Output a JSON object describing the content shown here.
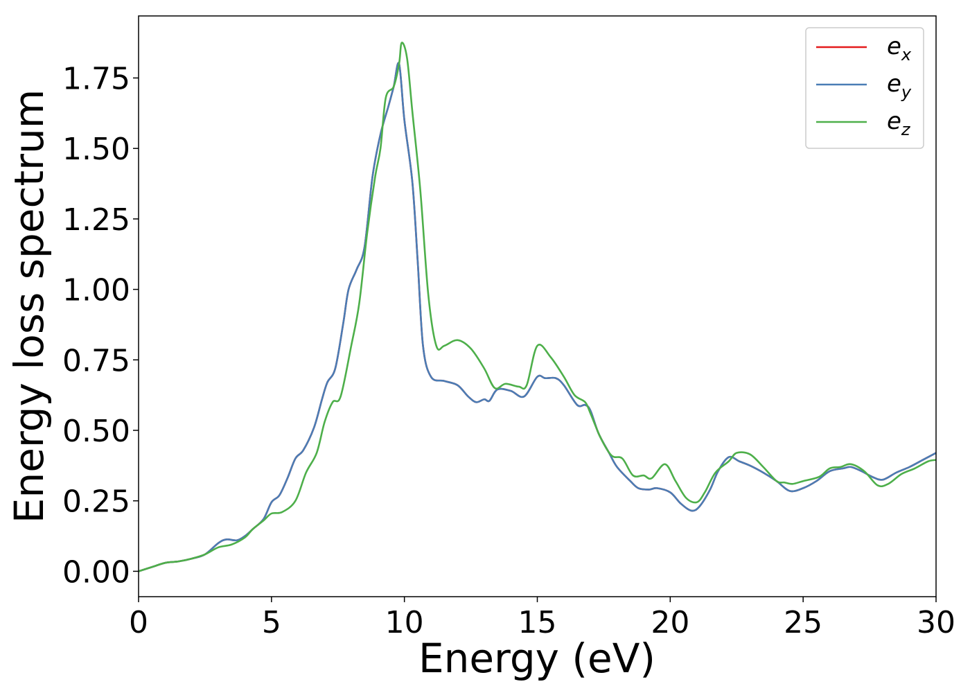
{
  "chart_data": {
    "type": "line",
    "xlabel": "Energy (eV)",
    "ylabel": "Energy loss spectrum",
    "xlim": [
      0,
      30
    ],
    "ylim": [
      -0.09,
      1.97
    ],
    "xticks": [
      0,
      5,
      10,
      15,
      20,
      25,
      30
    ],
    "xtick_labels": [
      "0",
      "5",
      "10",
      "15",
      "20",
      "25",
      "30"
    ],
    "yticks": [
      0,
      0.25,
      0.5,
      0.75,
      1.0,
      1.25,
      1.5,
      1.75
    ],
    "ytick_labels": [
      "0.00",
      "0.25",
      "0.50",
      "0.75",
      "1.00",
      "1.25",
      "1.50",
      "1.75"
    ],
    "grid": false,
    "legend_position": "top-right",
    "series": [
      {
        "name": "e_x",
        "legend_base": "e",
        "legend_sub": "x",
        "color": "#e41a1c",
        "points": [
          [
            0,
            0.0
          ],
          [
            0.5,
            0.015
          ],
          [
            1.0,
            0.03
          ],
          [
            1.5,
            0.035
          ],
          [
            2.0,
            0.045
          ],
          [
            2.5,
            0.06
          ],
          [
            3.0,
            0.1
          ],
          [
            3.3,
            0.113
          ],
          [
            3.7,
            0.11
          ],
          [
            4.0,
            0.125
          ],
          [
            4.3,
            0.15
          ],
          [
            4.7,
            0.185
          ],
          [
            5.0,
            0.245
          ],
          [
            5.3,
            0.27
          ],
          [
            5.6,
            0.33
          ],
          [
            5.9,
            0.4
          ],
          [
            6.2,
            0.43
          ],
          [
            6.6,
            0.51
          ],
          [
            6.9,
            0.61
          ],
          [
            7.1,
            0.67
          ],
          [
            7.4,
            0.72
          ],
          [
            7.7,
            0.88
          ],
          [
            7.9,
            1.0
          ],
          [
            8.2,
            1.07
          ],
          [
            8.5,
            1.15
          ],
          [
            8.8,
            1.4
          ],
          [
            9.1,
            1.55
          ],
          [
            9.4,
            1.65
          ],
          [
            9.6,
            1.72
          ],
          [
            9.8,
            1.8
          ],
          [
            10.0,
            1.6
          ],
          [
            10.3,
            1.38
          ],
          [
            10.5,
            1.1
          ],
          [
            10.7,
            0.8
          ],
          [
            11.0,
            0.69
          ],
          [
            11.5,
            0.675
          ],
          [
            12.0,
            0.66
          ],
          [
            12.4,
            0.62
          ],
          [
            12.7,
            0.6
          ],
          [
            13.0,
            0.61
          ],
          [
            13.2,
            0.605
          ],
          [
            13.5,
            0.645
          ],
          [
            14.0,
            0.64
          ],
          [
            14.5,
            0.62
          ],
          [
            15.0,
            0.69
          ],
          [
            15.3,
            0.685
          ],
          [
            15.7,
            0.685
          ],
          [
            16.0,
            0.66
          ],
          [
            16.5,
            0.59
          ],
          [
            16.8,
            0.59
          ],
          [
            17.0,
            0.57
          ],
          [
            17.3,
            0.49
          ],
          [
            17.7,
            0.42
          ],
          [
            18.0,
            0.37
          ],
          [
            18.5,
            0.32
          ],
          [
            18.8,
            0.295
          ],
          [
            19.2,
            0.29
          ],
          [
            19.5,
            0.295
          ],
          [
            20.0,
            0.28
          ],
          [
            20.4,
            0.24
          ],
          [
            20.8,
            0.215
          ],
          [
            21.1,
            0.23
          ],
          [
            21.5,
            0.29
          ],
          [
            21.8,
            0.355
          ],
          [
            22.2,
            0.405
          ],
          [
            22.6,
            0.39
          ],
          [
            23.0,
            0.375
          ],
          [
            23.5,
            0.35
          ],
          [
            24.0,
            0.32
          ],
          [
            24.5,
            0.285
          ],
          [
            25.0,
            0.295
          ],
          [
            25.5,
            0.32
          ],
          [
            26.0,
            0.355
          ],
          [
            26.5,
            0.365
          ],
          [
            26.8,
            0.37
          ],
          [
            27.2,
            0.355
          ],
          [
            27.6,
            0.335
          ],
          [
            28.0,
            0.325
          ],
          [
            28.5,
            0.35
          ],
          [
            29.0,
            0.37
          ],
          [
            29.5,
            0.395
          ],
          [
            30.0,
            0.42
          ]
        ]
      },
      {
        "name": "e_y",
        "legend_base": "e",
        "legend_sub": "y",
        "color": "#4a7db5",
        "points": [
          [
            0,
            0.0
          ],
          [
            0.5,
            0.015
          ],
          [
            1.0,
            0.03
          ],
          [
            1.5,
            0.035
          ],
          [
            2.0,
            0.045
          ],
          [
            2.5,
            0.06
          ],
          [
            3.0,
            0.1
          ],
          [
            3.3,
            0.113
          ],
          [
            3.7,
            0.11
          ],
          [
            4.0,
            0.125
          ],
          [
            4.3,
            0.15
          ],
          [
            4.7,
            0.185
          ],
          [
            5.0,
            0.245
          ],
          [
            5.3,
            0.27
          ],
          [
            5.6,
            0.33
          ],
          [
            5.9,
            0.4
          ],
          [
            6.2,
            0.43
          ],
          [
            6.6,
            0.51
          ],
          [
            6.9,
            0.61
          ],
          [
            7.1,
            0.67
          ],
          [
            7.4,
            0.72
          ],
          [
            7.7,
            0.88
          ],
          [
            7.9,
            1.0
          ],
          [
            8.2,
            1.07
          ],
          [
            8.5,
            1.15
          ],
          [
            8.8,
            1.4
          ],
          [
            9.1,
            1.55
          ],
          [
            9.4,
            1.65
          ],
          [
            9.6,
            1.72
          ],
          [
            9.8,
            1.8
          ],
          [
            10.0,
            1.6
          ],
          [
            10.3,
            1.38
          ],
          [
            10.5,
            1.1
          ],
          [
            10.7,
            0.8
          ],
          [
            11.0,
            0.69
          ],
          [
            11.5,
            0.675
          ],
          [
            12.0,
            0.66
          ],
          [
            12.4,
            0.62
          ],
          [
            12.7,
            0.6
          ],
          [
            13.0,
            0.61
          ],
          [
            13.2,
            0.605
          ],
          [
            13.5,
            0.645
          ],
          [
            14.0,
            0.64
          ],
          [
            14.5,
            0.62
          ],
          [
            15.0,
            0.69
          ],
          [
            15.3,
            0.685
          ],
          [
            15.7,
            0.685
          ],
          [
            16.0,
            0.66
          ],
          [
            16.5,
            0.59
          ],
          [
            16.8,
            0.59
          ],
          [
            17.0,
            0.57
          ],
          [
            17.3,
            0.49
          ],
          [
            17.7,
            0.42
          ],
          [
            18.0,
            0.37
          ],
          [
            18.5,
            0.32
          ],
          [
            18.8,
            0.295
          ],
          [
            19.2,
            0.29
          ],
          [
            19.5,
            0.295
          ],
          [
            20.0,
            0.28
          ],
          [
            20.4,
            0.24
          ],
          [
            20.8,
            0.215
          ],
          [
            21.1,
            0.23
          ],
          [
            21.5,
            0.29
          ],
          [
            21.8,
            0.355
          ],
          [
            22.2,
            0.405
          ],
          [
            22.6,
            0.39
          ],
          [
            23.0,
            0.375
          ],
          [
            23.5,
            0.35
          ],
          [
            24.0,
            0.32
          ],
          [
            24.5,
            0.285
          ],
          [
            25.0,
            0.295
          ],
          [
            25.5,
            0.32
          ],
          [
            26.0,
            0.355
          ],
          [
            26.5,
            0.365
          ],
          [
            26.8,
            0.37
          ],
          [
            27.2,
            0.355
          ],
          [
            27.6,
            0.335
          ],
          [
            28.0,
            0.325
          ],
          [
            28.5,
            0.35
          ],
          [
            29.0,
            0.37
          ],
          [
            29.5,
            0.395
          ],
          [
            30.0,
            0.42
          ]
        ]
      },
      {
        "name": "e_z",
        "legend_base": "e",
        "legend_sub": "z",
        "color": "#4daf4a",
        "points": [
          [
            0,
            0.0
          ],
          [
            0.5,
            0.015
          ],
          [
            1.0,
            0.03
          ],
          [
            1.5,
            0.035
          ],
          [
            2.0,
            0.045
          ],
          [
            2.5,
            0.06
          ],
          [
            3.0,
            0.085
          ],
          [
            3.5,
            0.095
          ],
          [
            4.0,
            0.12
          ],
          [
            4.3,
            0.15
          ],
          [
            4.7,
            0.18
          ],
          [
            5.0,
            0.205
          ],
          [
            5.4,
            0.21
          ],
          [
            5.9,
            0.25
          ],
          [
            6.3,
            0.35
          ],
          [
            6.7,
            0.42
          ],
          [
            7.0,
            0.53
          ],
          [
            7.3,
            0.6
          ],
          [
            7.6,
            0.62
          ],
          [
            8.0,
            0.8
          ],
          [
            8.3,
            0.95
          ],
          [
            8.6,
            1.2
          ],
          [
            8.9,
            1.4
          ],
          [
            9.1,
            1.5
          ],
          [
            9.3,
            1.68
          ],
          [
            9.6,
            1.72
          ],
          [
            9.8,
            1.8
          ],
          [
            9.9,
            1.875
          ],
          [
            10.1,
            1.82
          ],
          [
            10.3,
            1.63
          ],
          [
            10.6,
            1.35
          ],
          [
            10.9,
            0.98
          ],
          [
            11.2,
            0.8
          ],
          [
            11.5,
            0.8
          ],
          [
            12.0,
            0.82
          ],
          [
            12.5,
            0.79
          ],
          [
            13.0,
            0.72
          ],
          [
            13.4,
            0.65
          ],
          [
            13.8,
            0.665
          ],
          [
            14.3,
            0.655
          ],
          [
            14.6,
            0.66
          ],
          [
            15.0,
            0.8
          ],
          [
            15.5,
            0.76
          ],
          [
            16.0,
            0.69
          ],
          [
            16.4,
            0.625
          ],
          [
            16.8,
            0.6
          ],
          [
            17.0,
            0.56
          ],
          [
            17.4,
            0.47
          ],
          [
            17.8,
            0.41
          ],
          [
            18.2,
            0.4
          ],
          [
            18.6,
            0.34
          ],
          [
            19.0,
            0.34
          ],
          [
            19.3,
            0.33
          ],
          [
            19.8,
            0.38
          ],
          [
            20.2,
            0.32
          ],
          [
            20.6,
            0.26
          ],
          [
            21.0,
            0.245
          ],
          [
            21.3,
            0.28
          ],
          [
            21.7,
            0.35
          ],
          [
            22.2,
            0.39
          ],
          [
            22.5,
            0.42
          ],
          [
            23.0,
            0.415
          ],
          [
            23.5,
            0.37
          ],
          [
            24.0,
            0.32
          ],
          [
            24.3,
            0.315
          ],
          [
            24.6,
            0.31
          ],
          [
            25.0,
            0.32
          ],
          [
            25.6,
            0.335
          ],
          [
            26.0,
            0.365
          ],
          [
            26.4,
            0.37
          ],
          [
            26.8,
            0.38
          ],
          [
            27.3,
            0.355
          ],
          [
            27.8,
            0.305
          ],
          [
            28.2,
            0.31
          ],
          [
            28.7,
            0.345
          ],
          [
            29.2,
            0.365
          ],
          [
            29.7,
            0.39
          ],
          [
            30.0,
            0.395
          ]
        ]
      }
    ]
  }
}
